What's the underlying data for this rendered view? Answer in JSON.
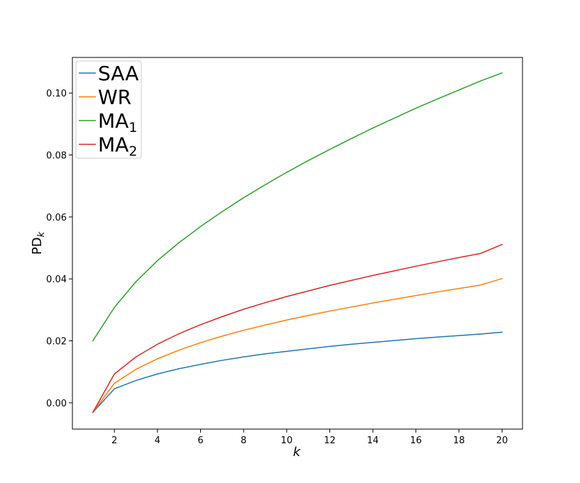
{
  "chart_data": {
    "type": "line",
    "title": "",
    "xlabel": "k",
    "ylabel_base": "PD",
    "ylabel_sub": "k",
    "xlim": [
      0.05,
      20.95
    ],
    "ylim": [
      -0.0085,
      0.1115
    ],
    "x_ticks": [
      2,
      4,
      6,
      8,
      10,
      12,
      14,
      16,
      18,
      20
    ],
    "x_tick_labels": [
      "2",
      "4",
      "6",
      "8",
      "10",
      "12",
      "14",
      "16",
      "18",
      "20"
    ],
    "y_ticks": [
      0.0,
      0.02,
      0.04,
      0.06,
      0.08,
      0.1
    ],
    "y_tick_labels": [
      "0.00",
      "0.02",
      "0.04",
      "0.06",
      "0.08",
      "0.10"
    ],
    "grid": false,
    "legend_position": "upper-left",
    "x": [
      1,
      2,
      3,
      4,
      5,
      6,
      7,
      8,
      9,
      10,
      11,
      12,
      13,
      14,
      15,
      16,
      17,
      18,
      19,
      20
    ],
    "series": [
      {
        "name_base": "SAA",
        "name_sub": "",
        "color": "#1f77b4",
        "values": [
          -0.0031,
          0.0045,
          0.0072,
          0.0093,
          0.011,
          0.0124,
          0.0137,
          0.0148,
          0.0158,
          0.0166,
          0.0174,
          0.0182,
          0.0189,
          0.0195,
          0.0201,
          0.0207,
          0.0212,
          0.0217,
          0.0222,
          0.0228
        ]
      },
      {
        "name_base": "WR",
        "name_sub": "",
        "color": "#ff7f0e",
        "values": [
          -0.0031,
          0.0063,
          0.0108,
          0.0142,
          0.017,
          0.0194,
          0.0215,
          0.0234,
          0.0251,
          0.0267,
          0.0282,
          0.0296,
          0.0309,
          0.0322,
          0.0334,
          0.0346,
          0.0358,
          0.0369,
          0.038,
          0.0401
        ]
      },
      {
        "name_base": "MA",
        "name_sub": "1",
        "color": "#2ca02c",
        "values": [
          0.02,
          0.0308,
          0.0391,
          0.0459,
          0.0517,
          0.0569,
          0.0617,
          0.0662,
          0.0704,
          0.0744,
          0.0782,
          0.0818,
          0.0853,
          0.0887,
          0.0919,
          0.0951,
          0.0981,
          0.101,
          0.1039,
          0.1065
        ]
      },
      {
        "name_base": "MA",
        "name_sub": "2",
        "color": "#d62728",
        "values": [
          -0.0031,
          0.0093,
          0.0148,
          0.0189,
          0.0223,
          0.0252,
          0.0278,
          0.0302,
          0.0323,
          0.0343,
          0.0361,
          0.0379,
          0.0395,
          0.0411,
          0.0426,
          0.0441,
          0.0455,
          0.0469,
          0.0482,
          0.0511
        ]
      }
    ]
  }
}
